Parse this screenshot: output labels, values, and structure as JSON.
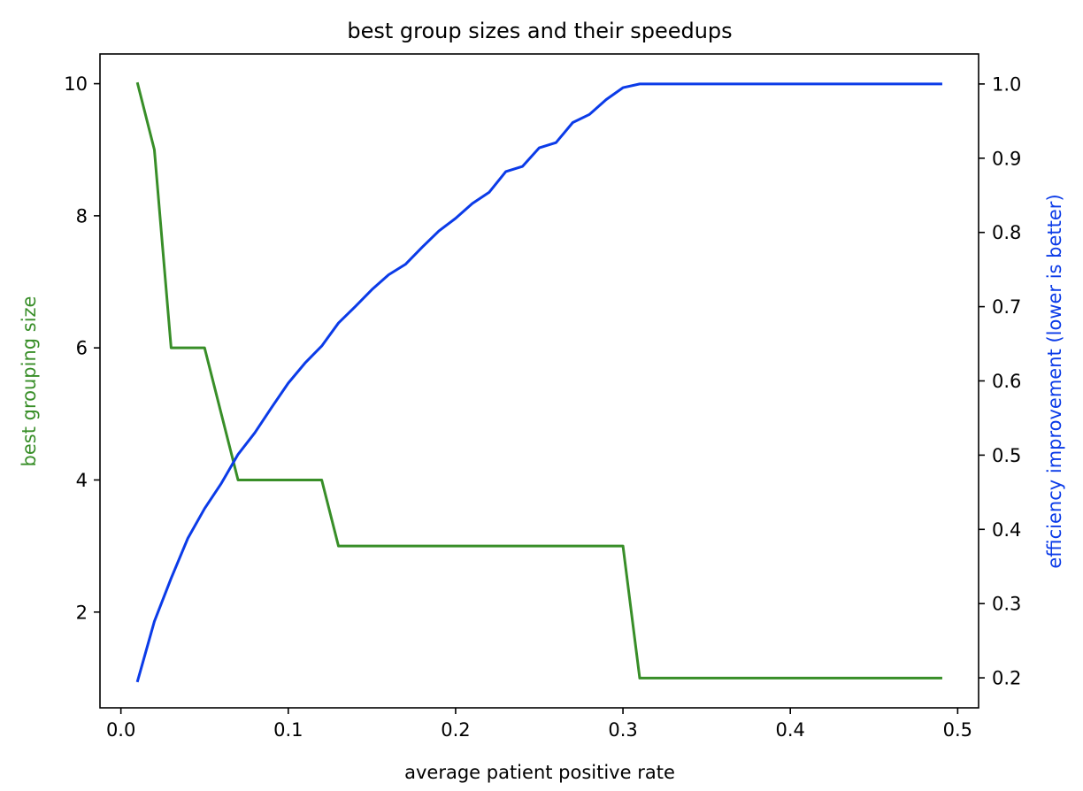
{
  "chart_data": {
    "type": "line",
    "title": "best group sizes and their speedups",
    "xlabel": "average patient positive rate",
    "ylabel_left": "best grouping size",
    "ylabel_right": "efficiency improvement (lower is better)",
    "xlim": [
      -0.0125,
      0.5125
    ],
    "ylim_left": [
      0.55,
      10.45
    ],
    "ylim_right": [
      0.1596,
      1.0404
    ],
    "x_ticks": [
      0.0,
      0.1,
      0.2,
      0.3,
      0.4,
      0.5
    ],
    "x_tick_labels": [
      "0.0",
      "0.1",
      "0.2",
      "0.3",
      "0.4",
      "0.5"
    ],
    "y_left_ticks": [
      2,
      4,
      6,
      8,
      10
    ],
    "y_left_tick_labels": [
      "2",
      "4",
      "6",
      "8",
      "10"
    ],
    "y_right_ticks": [
      0.2,
      0.3,
      0.4,
      0.5,
      0.6,
      0.7,
      0.8,
      0.9,
      1.0
    ],
    "y_right_tick_labels": [
      "0.2",
      "0.3",
      "0.4",
      "0.5",
      "0.6",
      "0.7",
      "0.8",
      "0.9",
      "1.0"
    ],
    "grid": false,
    "x": [
      0.01,
      0.02,
      0.03,
      0.04,
      0.05,
      0.06,
      0.07,
      0.08,
      0.09,
      0.1,
      0.11,
      0.12,
      0.13,
      0.14,
      0.15,
      0.16,
      0.17,
      0.18,
      0.19,
      0.2,
      0.21,
      0.22,
      0.23,
      0.24,
      0.25,
      0.26,
      0.27,
      0.28,
      0.29,
      0.3,
      0.31,
      0.32,
      0.33,
      0.34,
      0.35,
      0.36,
      0.37,
      0.38,
      0.39,
      0.4,
      0.41,
      0.42,
      0.43,
      0.44,
      0.45,
      0.46,
      0.47,
      0.48,
      0.49
    ],
    "series": [
      {
        "axis": "left",
        "color": "#388e28",
        "values": [
          10,
          9,
          6,
          6,
          6,
          5,
          4,
          4,
          4,
          4,
          4,
          4,
          3,
          3,
          3,
          3,
          3,
          3,
          3,
          3,
          3,
          3,
          3,
          3,
          3,
          3,
          3,
          3,
          3,
          3,
          1,
          1,
          1,
          1,
          1,
          1,
          1,
          1,
          1,
          1,
          1,
          1,
          1,
          1,
          1,
          1,
          1,
          1,
          1
        ]
      },
      {
        "axis": "right",
        "color": "#0b3be8",
        "values": [
          0.196,
          0.276,
          0.334,
          0.388,
          0.428,
          0.462,
          0.501,
          0.53,
          0.564,
          0.597,
          0.624,
          0.647,
          0.678,
          0.7,
          0.723,
          0.743,
          0.757,
          0.78,
          0.802,
          0.819,
          0.839,
          0.854,
          0.882,
          0.889,
          0.914,
          0.921,
          0.948,
          0.959,
          0.979,
          0.995,
          1.0,
          1.0,
          1.0,
          1.0,
          1.0,
          1.0,
          1.0,
          1.0,
          1.0,
          1.0,
          1.0,
          1.0,
          1.0,
          1.0,
          1.0,
          1.0,
          1.0,
          1.0,
          1.0
        ]
      }
    ]
  },
  "colors": {
    "left_axis_label": "#388e28",
    "right_axis_label": "#0b3be8"
  }
}
